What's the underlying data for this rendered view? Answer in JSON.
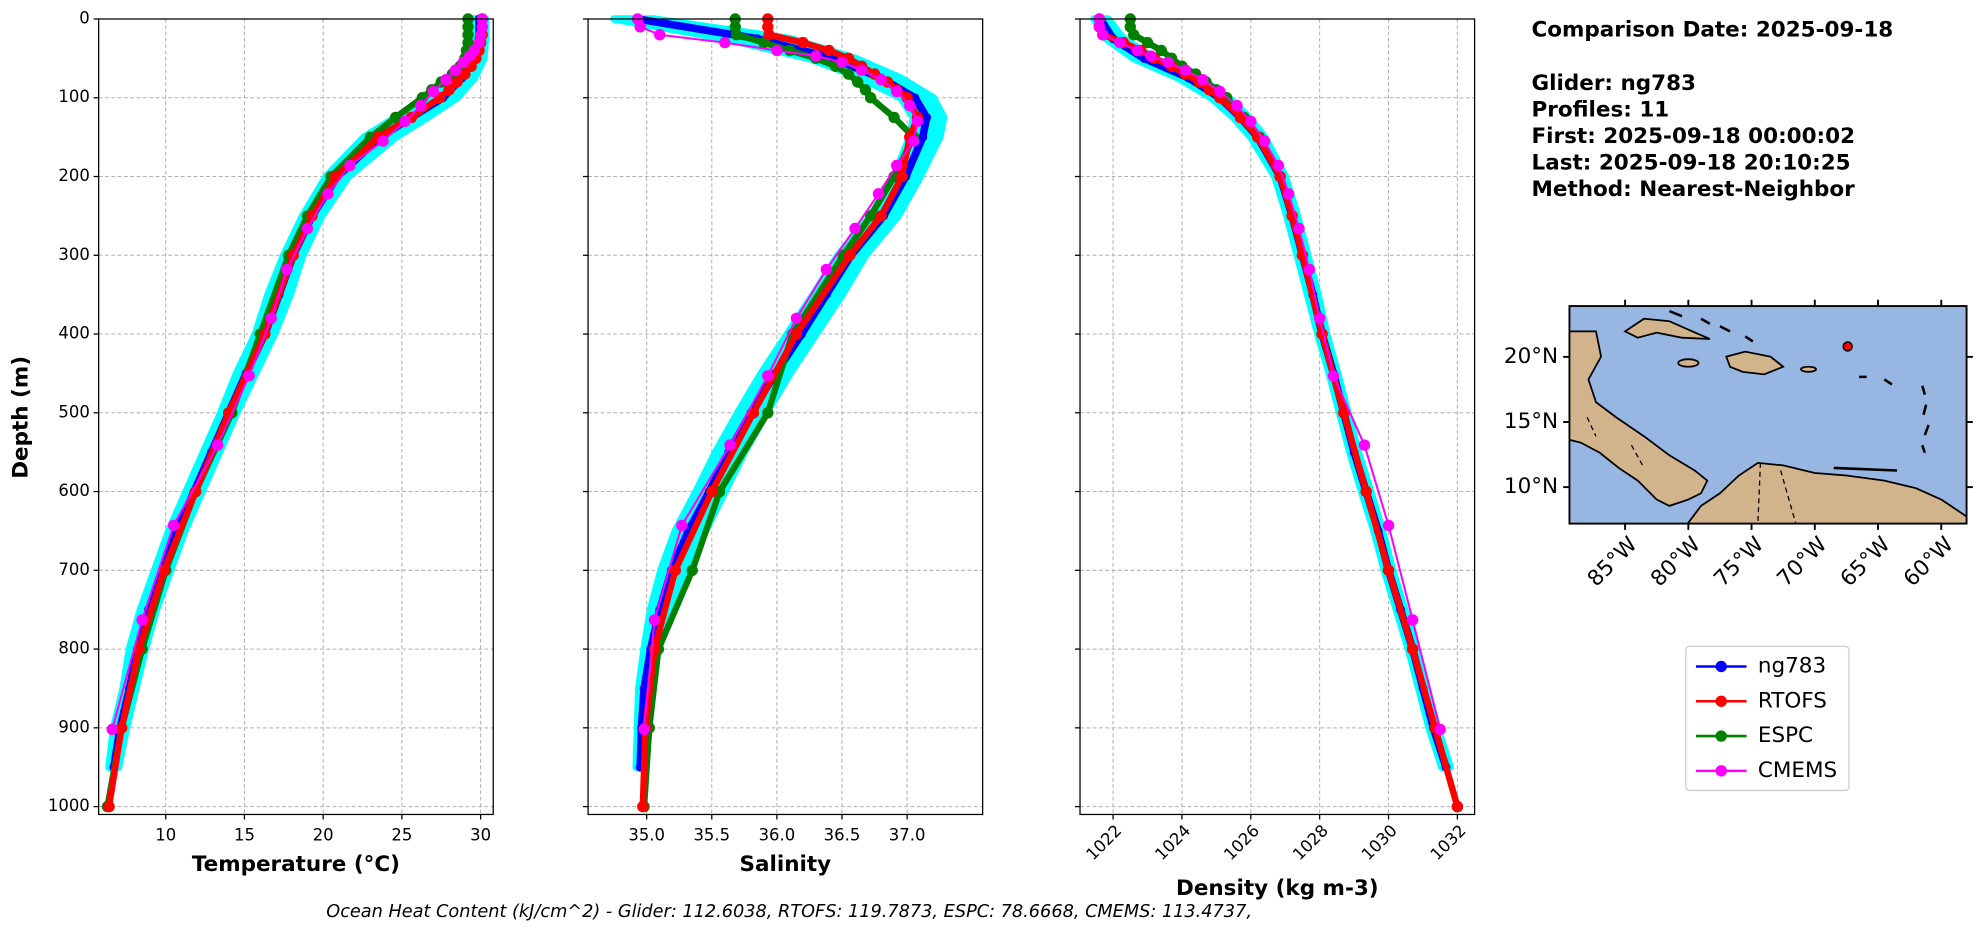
{
  "chart_data": {
    "type": "profile",
    "ylabel": "Depth (m)",
    "ylim": [
      1010,
      0
    ],
    "yticks": [
      0,
      100,
      200,
      300,
      400,
      500,
      600,
      700,
      800,
      900,
      1000
    ],
    "grid": true,
    "envelope_color": "#00ffff",
    "series": [
      {
        "name": "ng783",
        "color": "#0000ff"
      },
      {
        "name": "RTOFS",
        "color": "#ff0000"
      },
      {
        "name": "ESPC",
        "color": "#008000"
      },
      {
        "name": "CMEMS",
        "color": "#ff00ff"
      }
    ],
    "panels": [
      {
        "xlabel": "Temperature (°C)",
        "xlim": [
          5.74,
          30.8
        ],
        "xticks": [
          10,
          15,
          20,
          25,
          30
        ],
        "profiles": [
          {
            "depth": [
              0,
              25,
              50,
              75,
              100,
              125,
              150,
              200,
              250,
              300,
              350,
              400,
              450,
              500,
              550,
              600,
              650,
              700,
              750,
              800,
              850,
              900,
              950
            ],
            "values": [
              29.9,
              29.9,
              29.6,
              28.8,
              27.6,
              25.6,
              23.6,
              20.9,
              19.3,
              18.1,
              17.2,
              16.3,
              15.1,
              14.0,
              12.9,
              11.8,
              10.7,
              9.8,
              8.9,
              8.2,
              7.7,
              7.1,
              6.7
            ]
          },
          {
            "depth": [
              0,
              10,
              20,
              30,
              40,
              50,
              60,
              70,
              80,
              90,
              100,
              125,
              150,
              200,
              250,
              300,
              400,
              500,
              600,
              700,
              800,
              900,
              1000
            ],
            "values": [
              30.1,
              30.1,
              30.1,
              30.0,
              29.9,
              29.7,
              29.4,
              29.0,
              28.5,
              28.0,
              27.4,
              25.6,
              23.5,
              20.8,
              19.3,
              18.1,
              16.3,
              14.0,
              11.9,
              9.9,
              8.3,
              7.2,
              6.4
            ]
          },
          {
            "depth": [
              0,
              10,
              20,
              30,
              40,
              50,
              60,
              70,
              80,
              90,
              100,
              125,
              150,
              200,
              250,
              300,
              400,
              500,
              600,
              700,
              800,
              900,
              1000
            ],
            "values": [
              29.2,
              29.2,
              29.2,
              29.2,
              29.1,
              29.0,
              28.7,
              28.2,
              27.5,
              26.9,
              26.3,
              24.6,
              23.0,
              20.5,
              19.0,
              17.8,
              16.0,
              14.2,
              11.9,
              10.0,
              8.5,
              7.2,
              6.3
            ]
          },
          {
            "depth": [
              0,
              10,
              20,
              30,
              40,
              47,
              55,
              65,
              77,
              92,
              110,
              130,
              155,
              186,
              222,
              266,
              318,
              380,
              453,
              541,
              643,
              763,
              902
            ],
            "values": [
              30.1,
              30.1,
              30.0,
              29.9,
              29.6,
              29.3,
              28.9,
              28.4,
              27.8,
              27.0,
              26.2,
              25.2,
              23.8,
              21.7,
              20.3,
              19.0,
              17.7,
              16.7,
              15.3,
              13.3,
              10.5,
              8.5,
              6.6
            ]
          }
        ],
        "envelope": {
          "low": [
            29.5,
            29.5,
            29.0,
            28.0,
            26.6,
            24.6,
            22.6,
            20.2,
            18.7,
            17.5,
            16.5,
            15.7,
            14.5,
            13.5,
            12.4,
            11.3,
            10.2,
            9.3,
            8.4,
            7.7,
            7.3,
            6.7,
            6.4
          ],
          "high": [
            30.3,
            30.3,
            30.2,
            29.6,
            28.5,
            26.6,
            24.6,
            21.6,
            19.9,
            18.7,
            17.9,
            16.9,
            15.7,
            14.5,
            13.4,
            12.3,
            11.2,
            10.3,
            9.4,
            8.7,
            8.1,
            7.5,
            7.0
          ]
        }
      },
      {
        "xlabel": "Salinity",
        "xlim": [
          34.55,
          37.58
        ],
        "xticks": [
          {
            "value": 35,
            "label": "35.0"
          },
          35.5,
          {
            "value": 36,
            "label": "36.0"
          },
          36.5,
          {
            "value": 37,
            "label": "37.0"
          }
        ],
        "profiles": [
          {
            "depth": [
              0,
              25,
              50,
              75,
              100,
              125,
              150,
              200,
              250,
              300,
              350,
              400,
              450,
              500,
              550,
              600,
              650,
              700,
              750,
              800,
              850,
              900,
              950
            ],
            "values": [
              34.93,
              35.85,
              36.43,
              36.8,
              37.06,
              37.15,
              37.12,
              36.99,
              36.82,
              36.57,
              36.38,
              36.19,
              35.99,
              35.8,
              35.63,
              35.48,
              35.32,
              35.19,
              35.1,
              35.03,
              34.98,
              34.96,
              34.95
            ]
          },
          {
            "depth": [
              0,
              10,
              20,
              30,
              40,
              50,
              60,
              70,
              80,
              90,
              100,
              125,
              150,
              200,
              250,
              300,
              400,
              500,
              600,
              700,
              800,
              900,
              1000
            ],
            "values": [
              35.93,
              35.93,
              35.94,
              36.2,
              36.4,
              36.55,
              36.65,
              36.75,
              36.85,
              36.92,
              37.0,
              37.08,
              37.02,
              36.96,
              36.8,
              36.56,
              36.15,
              35.82,
              35.5,
              35.22,
              35.06,
              34.99,
              34.97
            ]
          },
          {
            "depth": [
              0,
              10,
              20,
              30,
              40,
              50,
              60,
              70,
              80,
              90,
              100,
              125,
              150,
              200,
              250,
              300,
              400,
              500,
              600,
              700,
              800,
              900,
              1000
            ],
            "values": [
              35.68,
              35.68,
              35.69,
              35.9,
              36.1,
              36.3,
              36.45,
              36.55,
              36.62,
              36.68,
              36.72,
              36.9,
              37.05,
              36.9,
              36.72,
              36.51,
              36.12,
              35.93,
              35.56,
              35.35,
              35.09,
              35.02,
              34.98
            ]
          },
          {
            "depth": [
              0,
              10,
              20,
              30,
              40,
              47,
              55,
              65,
              77,
              92,
              110,
              130,
              155,
              186,
              222,
              266,
              318,
              380,
              453,
              541,
              643,
              763,
              902
            ],
            "values": [
              34.93,
              34.95,
              35.1,
              35.6,
              36.0,
              36.3,
              36.5,
              36.65,
              36.8,
              36.92,
              37.02,
              37.08,
              37.05,
              36.92,
              36.78,
              36.6,
              36.38,
              36.15,
              35.93,
              35.64,
              35.27,
              35.06,
              34.98
            ]
          }
        ],
        "envelope": {
          "low": [
            34.75,
            35.6,
            36.25,
            36.65,
            36.95,
            37.05,
            37.02,
            36.9,
            36.72,
            36.47,
            36.28,
            36.08,
            35.88,
            35.7,
            35.53,
            35.38,
            35.22,
            35.11,
            35.03,
            34.98,
            34.94,
            34.93,
            34.92
          ],
          "high": [
            35.05,
            36.1,
            36.6,
            36.95,
            37.2,
            37.28,
            37.25,
            37.1,
            36.93,
            36.68,
            36.5,
            36.3,
            36.1,
            35.92,
            35.75,
            35.6,
            35.45,
            35.3,
            35.18,
            35.09,
            35.03,
            35.0,
            34.98
          ]
        }
      },
      {
        "xlabel": "Density (kg m-3)",
        "xlim": [
          1021.04,
          1032.5
        ],
        "xticks": [
          1022,
          1024,
          1026,
          1028,
          1030,
          1032
        ],
        "rotate_xticks": true,
        "profiles": [
          {
            "depth": [
              0,
              25,
              50,
              75,
              100,
              125,
              150,
              200,
              250,
              300,
              350,
              400,
              450,
              500,
              550,
              600,
              650,
              700,
              750,
              800,
              850,
              900,
              950
            ],
            "values": [
              1021.63,
              1022.0,
              1022.9,
              1024.2,
              1025.1,
              1025.7,
              1026.2,
              1026.85,
              1027.2,
              1027.5,
              1027.8,
              1028.07,
              1028.4,
              1028.7,
              1029.0,
              1029.35,
              1029.7,
              1030.0,
              1030.35,
              1030.7,
              1031.0,
              1031.3,
              1031.67
            ]
          },
          {
            "depth": [
              0,
              10,
              20,
              30,
              40,
              50,
              60,
              70,
              80,
              90,
              100,
              125,
              150,
              200,
              250,
              300,
              400,
              500,
              600,
              700,
              800,
              900,
              1000
            ],
            "values": [
              1021.6,
              1021.6,
              1021.7,
              1022.3,
              1022.8,
              1023.2,
              1023.7,
              1024.1,
              1024.5,
              1024.8,
              1025.1,
              1025.7,
              1026.2,
              1026.85,
              1027.2,
              1027.5,
              1028.07,
              1028.7,
              1029.35,
              1030.0,
              1030.7,
              1031.35,
              1032.0
            ]
          },
          {
            "depth": [
              0,
              10,
              20,
              30,
              40,
              50,
              60,
              70,
              80,
              90,
              100,
              125,
              150,
              200,
              250,
              300,
              400,
              500,
              600,
              700,
              800,
              900,
              1000
            ],
            "values": [
              1022.5,
              1022.5,
              1022.6,
              1023.0,
              1023.4,
              1023.7,
              1024.0,
              1024.4,
              1024.7,
              1025.0,
              1025.3,
              1025.8,
              1026.25,
              1026.85,
              1027.2,
              1027.5,
              1028.07,
              1028.7,
              1029.35,
              1030.0,
              1030.7,
              1031.35,
              1032.0
            ]
          },
          {
            "depth": [
              0,
              10,
              20,
              30,
              40,
              47,
              55,
              65,
              77,
              92,
              110,
              130,
              155,
              186,
              222,
              266,
              318,
              380,
              453,
              541,
              643,
              763,
              902
            ],
            "values": [
              1021.6,
              1021.6,
              1021.7,
              1022.2,
              1022.7,
              1023.1,
              1023.6,
              1024.1,
              1024.6,
              1025.1,
              1025.6,
              1026.0,
              1026.4,
              1026.8,
              1027.1,
              1027.4,
              1027.7,
              1028.0,
              1028.4,
              1029.3,
              1030.0,
              1030.7,
              1031.5
            ]
          }
        ],
        "envelope": {
          "low": [
            1021.45,
            1021.8,
            1022.6,
            1023.9,
            1024.85,
            1025.5,
            1026.0,
            1026.7,
            1027.05,
            1027.35,
            1027.65,
            1027.95,
            1028.28,
            1028.58,
            1028.88,
            1029.22,
            1029.58,
            1029.88,
            1030.23,
            1030.58,
            1030.88,
            1031.18,
            1031.55
          ],
          "high": [
            1021.85,
            1022.3,
            1023.2,
            1024.5,
            1025.35,
            1025.95,
            1026.4,
            1027.0,
            1027.35,
            1027.65,
            1027.95,
            1028.2,
            1028.52,
            1028.82,
            1029.12,
            1029.48,
            1029.82,
            1030.12,
            1030.47,
            1030.82,
            1031.12,
            1031.42,
            1031.79
          ]
        }
      }
    ],
    "info_title": "Comparison Date: 2025-09-18",
    "info": [
      "Glider: ng783",
      "Profiles: 11",
      "First: 2025-09-18 00:00:02",
      "Last: 2025-09-18 20:10:25",
      "Method: Nearest-Neighbor"
    ],
    "footer": "Ocean Heat Content (kJ/cm^2) - Glider: 112.6038,  RTOFS: 119.7873,  ESPC: 78.6668,  CMEMS: 113.4737,",
    "map": {
      "xlim": [
        -89.4,
        -58.0
      ],
      "ylim": [
        7.2,
        23.9
      ],
      "xticks": [
        {
          "value": -85,
          "label": "85°W"
        },
        {
          "value": -80,
          "label": "80°W"
        },
        {
          "value": -75,
          "label": "75°W"
        },
        {
          "value": -70,
          "label": "70°W"
        },
        {
          "value": -65,
          "label": "65°W"
        },
        {
          "value": -60,
          "label": "60°W"
        }
      ],
      "yticks": [
        {
          "value": 20,
          "label": "20°N"
        },
        {
          "value": 15,
          "label": "15°N"
        },
        {
          "value": 10,
          "label": "10°N"
        }
      ],
      "glider_position": {
        "lon": -67.4,
        "lat": 20.8,
        "color": "#ff0000"
      }
    }
  }
}
